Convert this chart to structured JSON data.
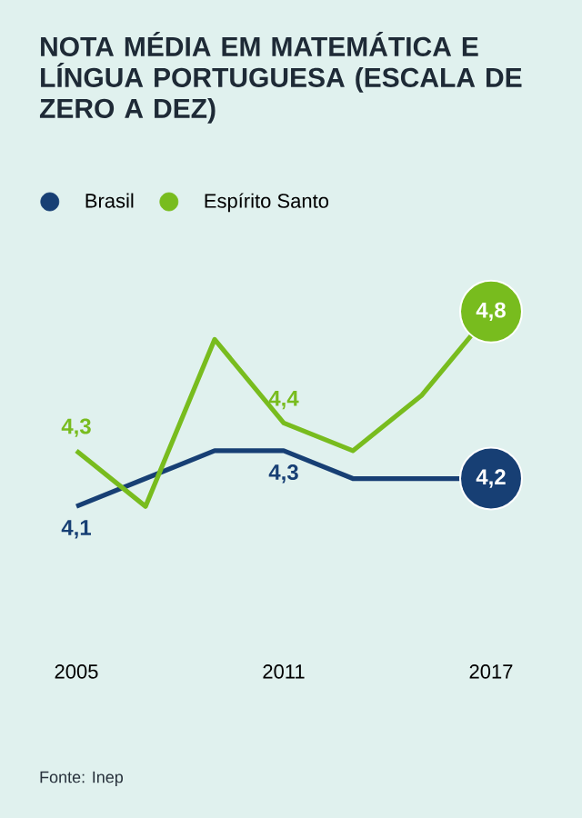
{
  "chart_data": {
    "type": "line",
    "title": "NOTA MÉDIA EM MATEMÁTICA E LÍNGUA PORTUGUESA (ESCALA DE ZERO A DEZ)",
    "x": [
      2005,
      2007,
      2009,
      2011,
      2013,
      2015,
      2017
    ],
    "xlim": [
      2005,
      2017
    ],
    "xticks": [
      2005,
      2011,
      2017
    ],
    "tick_labels": "x",
    "series": [
      {
        "name": "Brasil",
        "color": "#173f74",
        "values": [
          4.1,
          4.2,
          4.3,
          4.3,
          4.2,
          4.2,
          4.2
        ],
        "value_labels": [
          "4,1",
          null,
          null,
          "4,3",
          null,
          null,
          "4,2"
        ]
      },
      {
        "name": "Espírito Santo",
        "color": "#78bc1e",
        "values": [
          4.3,
          4.1,
          4.7,
          4.4,
          4.3,
          4.5,
          4.8
        ],
        "value_labels": [
          "4,3",
          null,
          null,
          "4,4",
          null,
          null,
          "4,8"
        ]
      }
    ],
    "legend": "top left",
    "marker": "none",
    "line_style": "solid",
    "annotations": [
      "Fonte: Inep"
    ]
  }
}
